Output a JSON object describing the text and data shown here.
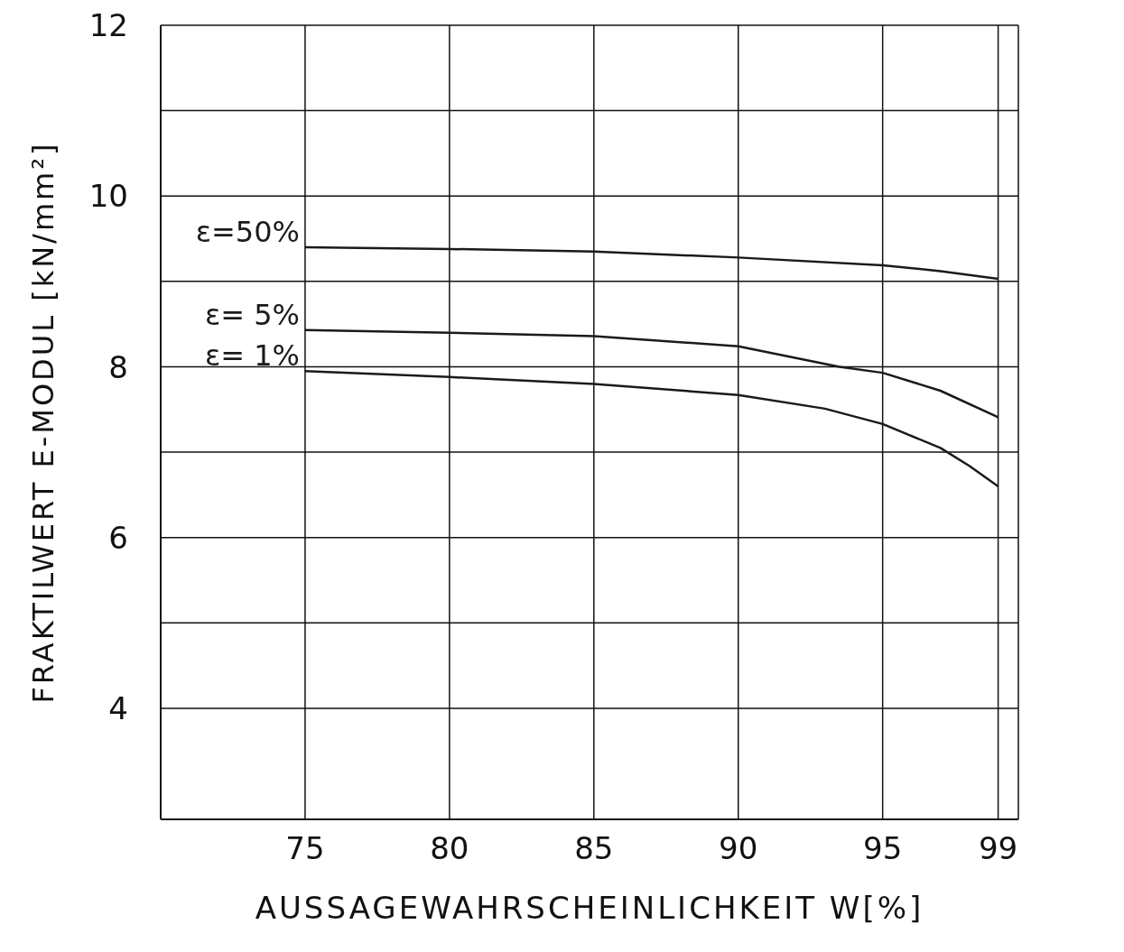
{
  "chart_data": {
    "type": "line",
    "xlabel": "AUSSAGEWAHRSCHEINLICHKEIT   W[%]",
    "ylabel": "FRAKTILWERT   E-MODUL   [kN/mm²]",
    "xlim": [
      70,
      99.7
    ],
    "xticks": [
      75,
      80,
      85,
      90,
      95,
      99
    ],
    "ylim": [
      2.7,
      12
    ],
    "yticks": [
      4,
      {
        "value": 5,
        "label": null
      },
      6,
      {
        "value": 7,
        "label": null
      },
      8,
      {
        "value": 9,
        "label": null
      },
      10,
      {
        "value": 11,
        "label": null
      },
      12
    ],
    "grid": true,
    "legend": false,
    "marker": "none",
    "line_style": "solid",
    "series": [
      {
        "name": "ε=50%",
        "color": "#1a1a1a",
        "x": [
          75,
          80,
          85,
          90,
          95,
          97,
          99
        ],
        "values": [
          9.4,
          9.38,
          9.35,
          9.28,
          9.19,
          9.12,
          9.03
        ]
      },
      {
        "name": "ε= 5%",
        "color": "#1a1a1a",
        "x": [
          75,
          80,
          85,
          90,
          93.5,
          95,
          97,
          99
        ],
        "values": [
          8.43,
          8.4,
          8.36,
          8.24,
          8.0,
          7.93,
          7.72,
          7.41
        ]
      },
      {
        "name": "ε= 1%",
        "color": "#1a1a1a",
        "x": [
          75,
          80,
          85,
          90,
          93,
          95,
          97,
          98,
          99
        ],
        "values": [
          7.95,
          7.88,
          7.8,
          7.67,
          7.51,
          7.33,
          7.05,
          6.84,
          6.6
        ]
      }
    ]
  }
}
